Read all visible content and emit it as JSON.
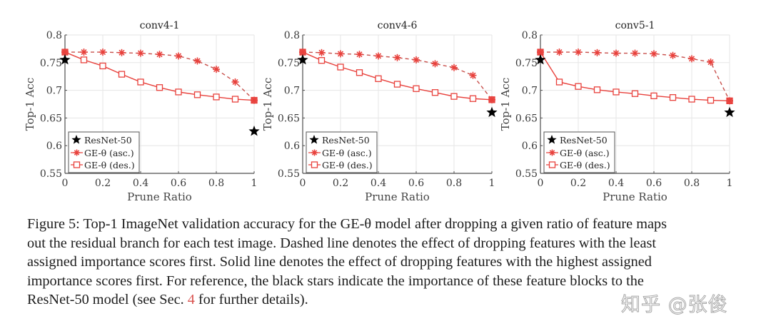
{
  "chart_data": [
    {
      "type": "line",
      "title": "conv4-1",
      "xlabel": "Prune Ratio",
      "ylabel": "Top-1 Acc",
      "xlim": [
        0,
        1
      ],
      "ylim": [
        0.55,
        0.8
      ],
      "xticks": [
        "0",
        "0.2",
        "0.4",
        "0.6",
        "0.8",
        "1"
      ],
      "yticks": [
        "0.55",
        "0.6",
        "0.65",
        "0.7",
        "0.75",
        "0.8"
      ],
      "grid": true,
      "legend_position": "bottom-left",
      "x": [
        0,
        0.1,
        0.2,
        0.3,
        0.4,
        0.5,
        0.6,
        0.7,
        0.8,
        0.9,
        1.0
      ],
      "series": [
        {
          "name": "GE-θ (asc.)",
          "style": "dashed",
          "marker": "asterisk",
          "values": [
            0.769,
            0.769,
            0.769,
            0.768,
            0.767,
            0.765,
            0.762,
            0.753,
            0.738,
            0.715,
            0.682
          ]
        },
        {
          "name": "GE-θ (des.)",
          "style": "solid",
          "marker": "square",
          "values": [
            0.769,
            0.755,
            0.744,
            0.729,
            0.715,
            0.705,
            0.697,
            0.692,
            0.688,
            0.684,
            0.682
          ]
        }
      ],
      "reference": {
        "name": "ResNet-50",
        "marker": "star",
        "points": [
          {
            "x": 0,
            "y": 0.755
          },
          {
            "x": 1,
            "y": 0.626
          }
        ]
      }
    },
    {
      "type": "line",
      "title": "conv4-6",
      "xlabel": "Prune Ratio",
      "ylabel": "Top-1 Acc",
      "xlim": [
        0,
        1
      ],
      "ylim": [
        0.55,
        0.8
      ],
      "xticks": [
        "0",
        "0.2",
        "0.4",
        "0.6",
        "0.8",
        "1"
      ],
      "yticks": [
        "0.55",
        "0.6",
        "0.65",
        "0.7",
        "0.75",
        "0.8"
      ],
      "grid": true,
      "legend_position": "bottom-left",
      "x": [
        0,
        0.1,
        0.2,
        0.3,
        0.4,
        0.5,
        0.6,
        0.7,
        0.8,
        0.9,
        1.0
      ],
      "series": [
        {
          "name": "GE-θ (asc.)",
          "style": "dashed",
          "marker": "asterisk",
          "values": [
            0.769,
            0.768,
            0.766,
            0.765,
            0.762,
            0.759,
            0.755,
            0.748,
            0.741,
            0.727,
            0.683
          ]
        },
        {
          "name": "GE-θ (des.)",
          "style": "solid",
          "marker": "square",
          "values": [
            0.769,
            0.754,
            0.742,
            0.732,
            0.721,
            0.711,
            0.703,
            0.696,
            0.689,
            0.685,
            0.683
          ]
        }
      ],
      "reference": {
        "name": "ResNet-50",
        "marker": "star",
        "points": [
          {
            "x": 0,
            "y": 0.755
          },
          {
            "x": 1,
            "y": 0.66
          }
        ]
      }
    },
    {
      "type": "line",
      "title": "conv5-1",
      "xlabel": "Prune Ratio",
      "ylabel": "Top-1 Acc",
      "xlim": [
        0,
        1
      ],
      "ylim": [
        0.55,
        0.8
      ],
      "xticks": [
        "0",
        "0.2",
        "0.4",
        "0.6",
        "0.8",
        "1"
      ],
      "yticks": [
        "0.55",
        "0.6",
        "0.65",
        "0.7",
        "0.75",
        "0.8"
      ],
      "grid": true,
      "legend_position": "bottom-left",
      "x": [
        0,
        0.1,
        0.2,
        0.3,
        0.4,
        0.5,
        0.6,
        0.7,
        0.8,
        0.9,
        1.0
      ],
      "series": [
        {
          "name": "GE-θ (asc.)",
          "style": "dashed",
          "marker": "asterisk",
          "values": [
            0.769,
            0.769,
            0.769,
            0.768,
            0.767,
            0.767,
            0.766,
            0.763,
            0.757,
            0.751,
            0.681
          ]
        },
        {
          "name": "GE-θ (des.)",
          "style": "solid",
          "marker": "square",
          "values": [
            0.769,
            0.715,
            0.707,
            0.701,
            0.697,
            0.694,
            0.69,
            0.687,
            0.684,
            0.682,
            0.681
          ]
        }
      ],
      "reference": {
        "name": "ResNet-50",
        "marker": "star",
        "points": [
          {
            "x": 0,
            "y": 0.755
          },
          {
            "x": 1,
            "y": 0.66
          }
        ]
      }
    }
  ],
  "colors": {
    "series_red": "#e8413c",
    "reference_black": "#000000",
    "grid": "#e6e6e6",
    "axis": "#4d4d4d",
    "caption_ref": "#d9534f"
  },
  "caption": {
    "lines": [
      "Figure 5: Top-1 ImageNet validation accuracy for the GE-θ model after dropping a given ratio of feature maps",
      "out the residual branch for each test image. Dashed line denotes the effect of dropping features with the least",
      "assigned importance scores first. Solid line denotes the effect of dropping features with the highest assigned",
      "importance scores first. For reference, the black stars indicate the importance of these feature blocks to the"
    ],
    "last_line_before": "ResNet-50 model (see Sec. ",
    "section_ref": "4",
    "last_line_after": " for further details)."
  },
  "watermark": "知乎 @张俊"
}
